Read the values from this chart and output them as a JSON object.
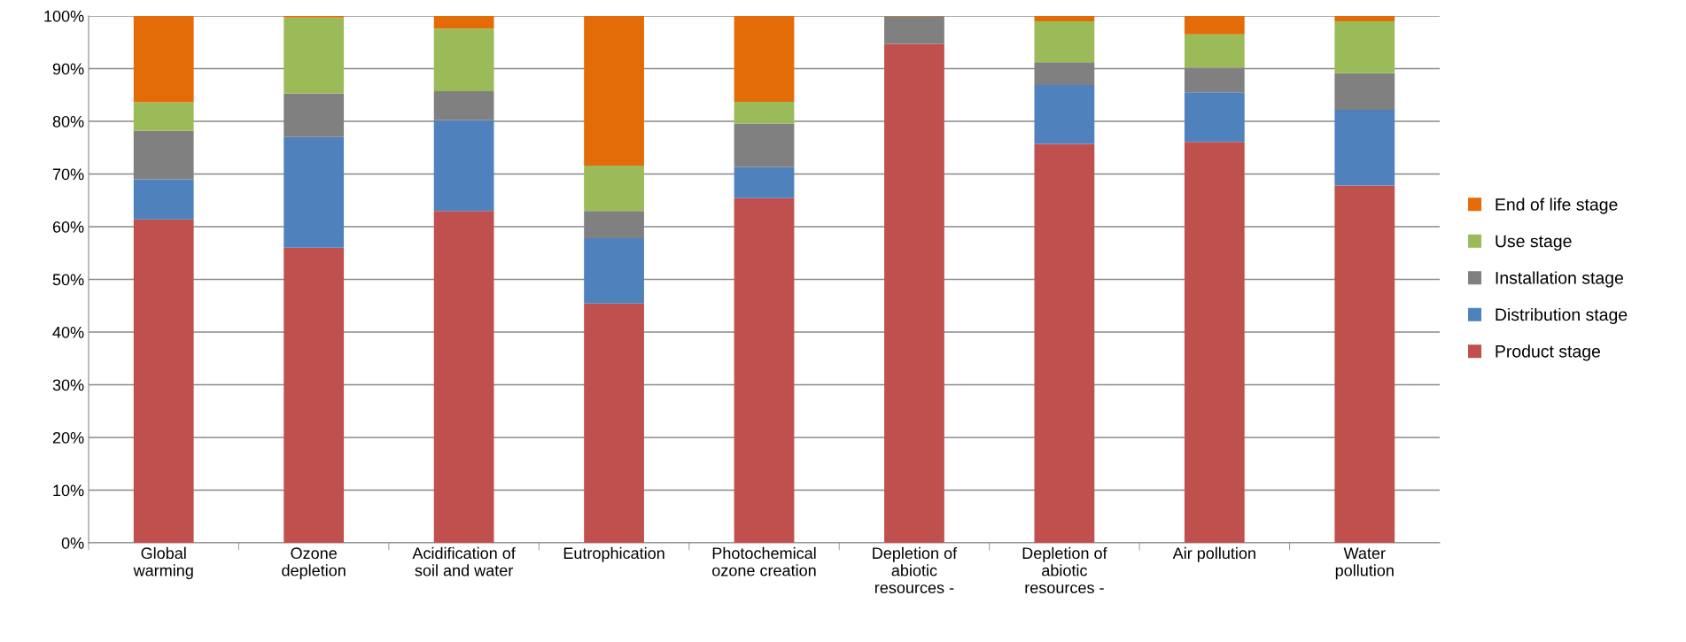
{
  "chart_data": {
    "type": "bar",
    "stacked": true,
    "grid": "y",
    "legend": "right",
    "categories": [
      "Global\nwarming",
      "Ozone\ndepletion",
      "Acidification of\nsoil and water",
      "Eutrophication",
      "Photochemical\nozone creation",
      "Depletion of\nabiotic\nresources -",
      "Depletion of\nabiotic\nresources -",
      "Air pollution",
      "Water\npollution"
    ],
    "ylim": [
      0,
      100
    ],
    "yticks": [
      {
        "value": 0,
        "label": "0%"
      },
      {
        "value": 10,
        "label": "10%"
      },
      {
        "value": 20,
        "label": "20%"
      },
      {
        "value": 30,
        "label": "30%"
      },
      {
        "value": 40,
        "label": "40%"
      },
      {
        "value": 50,
        "label": "50%"
      },
      {
        "value": 60,
        "label": "60%"
      },
      {
        "value": 70,
        "label": "70%"
      },
      {
        "value": 80,
        "label": "80%"
      },
      {
        "value": 90,
        "label": "90%"
      },
      {
        "value": 100,
        "label": "100%"
      }
    ],
    "series": [
      {
        "name": "Product stage",
        "color": "#c0504d",
        "values": [
          61.4,
          56,
          63,
          45.4,
          65.4,
          94.7,
          75.7,
          76.1,
          67.8
        ]
      },
      {
        "name": "Distribution stage",
        "color": "#4f81bd",
        "values": [
          7.6,
          21,
          17.2,
          12.4,
          5.9,
          0,
          11.2,
          9.4,
          14.4
        ]
      },
      {
        "name": "Installation stage",
        "color": "#808080",
        "values": [
          9.2,
          8.3,
          5.5,
          5.2,
          8.3,
          5.2,
          4.3,
          4.7,
          6.9
        ]
      },
      {
        "name": "Use stage",
        "color": "#9bbb59",
        "values": [
          5.4,
          14.4,
          11.9,
          8.6,
          4.1,
          0,
          7.8,
          6.3,
          9.9
        ]
      },
      {
        "name": "End of life stage",
        "color": "#e36c09",
        "values": [
          16.4,
          0.3,
          2.4,
          28.4,
          16.3,
          0.1,
          1.0,
          3.5,
          1.0
        ]
      }
    ]
  }
}
